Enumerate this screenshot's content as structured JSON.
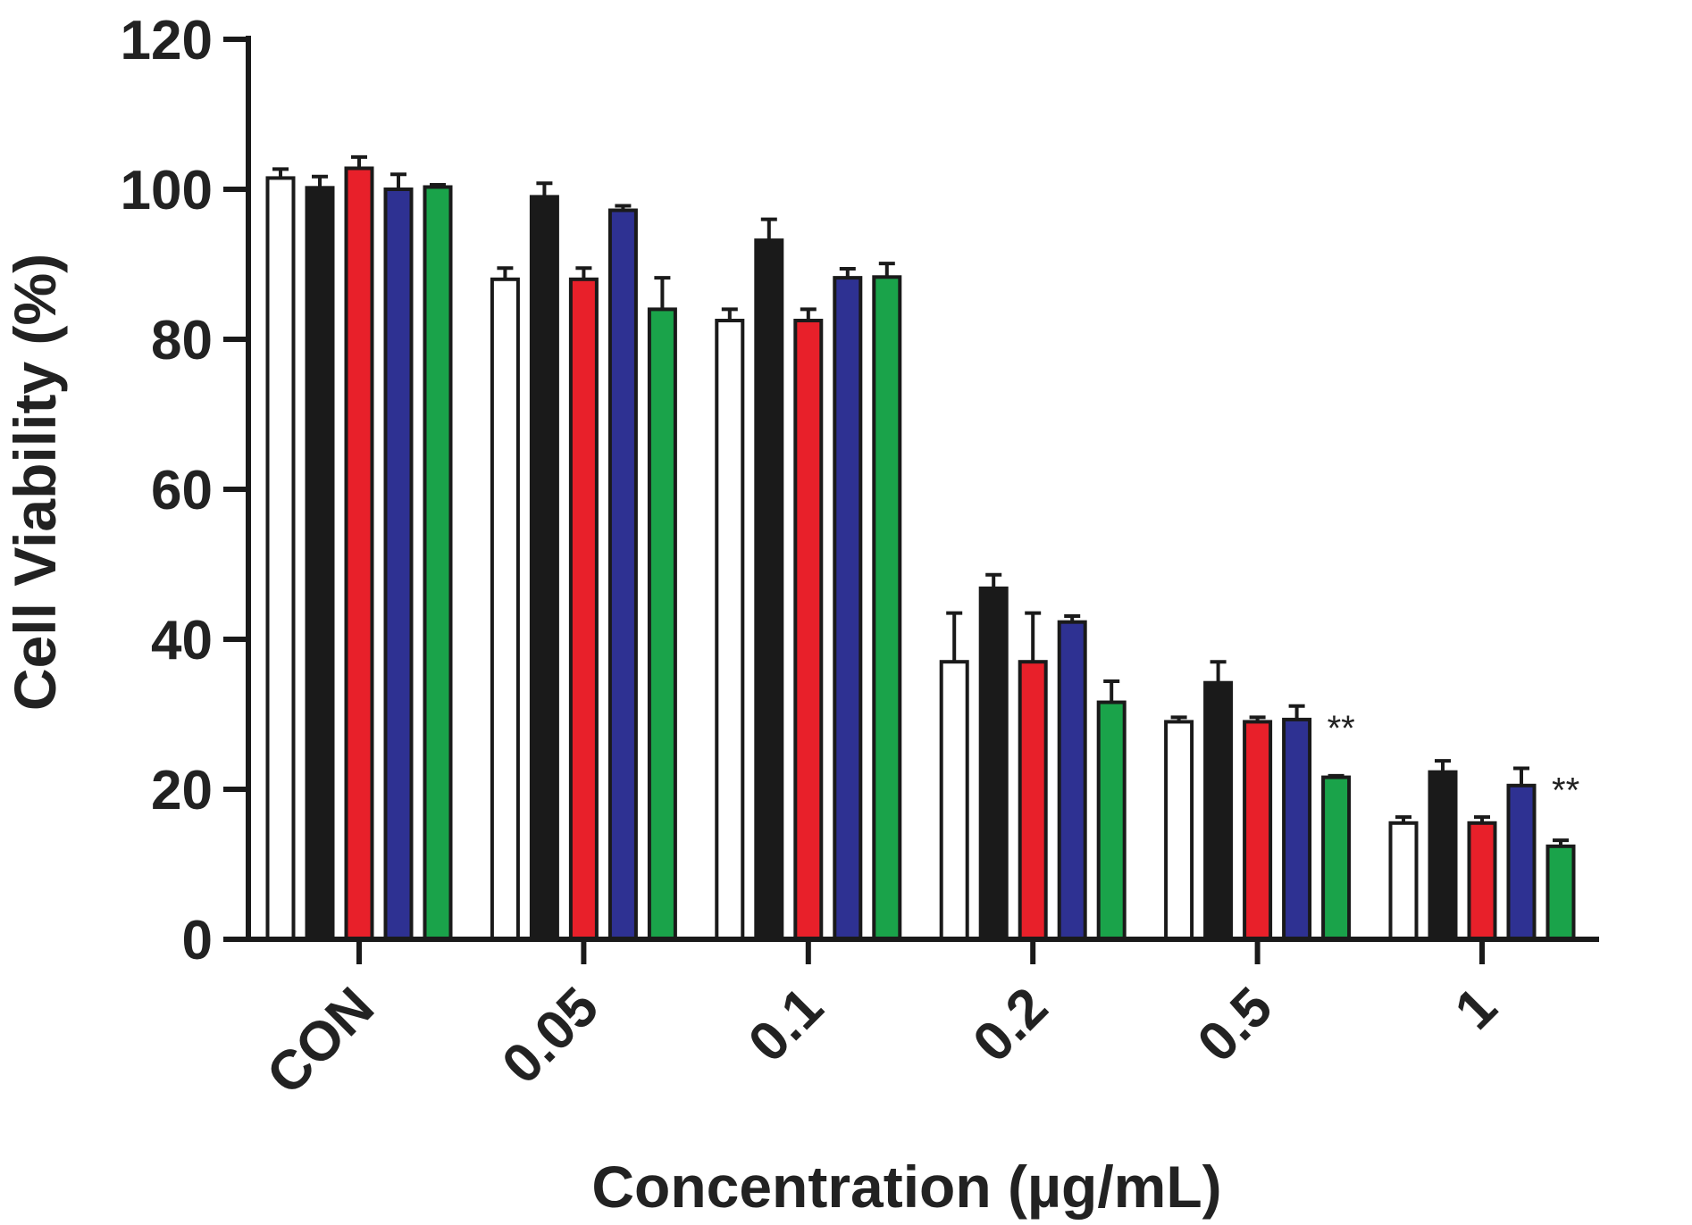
{
  "chart_data": {
    "type": "bar",
    "xlabel": "Concentration (µg/mL)",
    "ylabel": "Cell Viability (%)",
    "ylim": [
      0,
      120
    ],
    "yticks": [
      0,
      20,
      40,
      60,
      80,
      100,
      120
    ],
    "categories": [
      "CON",
      "0.05",
      "0.1",
      "0.2",
      "0.5",
      "1"
    ],
    "series": [
      {
        "color": "#ffffff",
        "values": [
          101.5,
          88,
          82.5,
          37,
          29,
          15.5
        ],
        "errors": [
          1.2,
          1.5,
          1.5,
          6.5,
          0.6,
          0.8
        ]
      },
      {
        "color": "#1a1a1a",
        "values": [
          100.2,
          99,
          93.2,
          46.8,
          34.2,
          22.3
        ],
        "errors": [
          1.5,
          1.8,
          2.8,
          1.8,
          2.8,
          1.5
        ]
      },
      {
        "color": "#e8202a",
        "values": [
          102.8,
          88,
          82.5,
          37,
          29,
          15.5
        ],
        "errors": [
          1.5,
          1.5,
          1.5,
          6.5,
          0.6,
          0.8
        ]
      },
      {
        "color": "#2e3192",
        "values": [
          100,
          97.2,
          88.2,
          42.3,
          29.3,
          20.5
        ],
        "errors": [
          2.0,
          0.6,
          1.2,
          0.8,
          1.8,
          2.3
        ]
      },
      {
        "color": "#1aa34a",
        "values": [
          100.3,
          84,
          88.3,
          31.6,
          21.6,
          12.4
        ],
        "errors": [
          0.3,
          4.2,
          1.8,
          2.8,
          0.2,
          0.8
        ]
      }
    ],
    "annotations": [
      {
        "category": "0.5",
        "text": "**"
      },
      {
        "category": "1",
        "text": "**"
      }
    ]
  }
}
